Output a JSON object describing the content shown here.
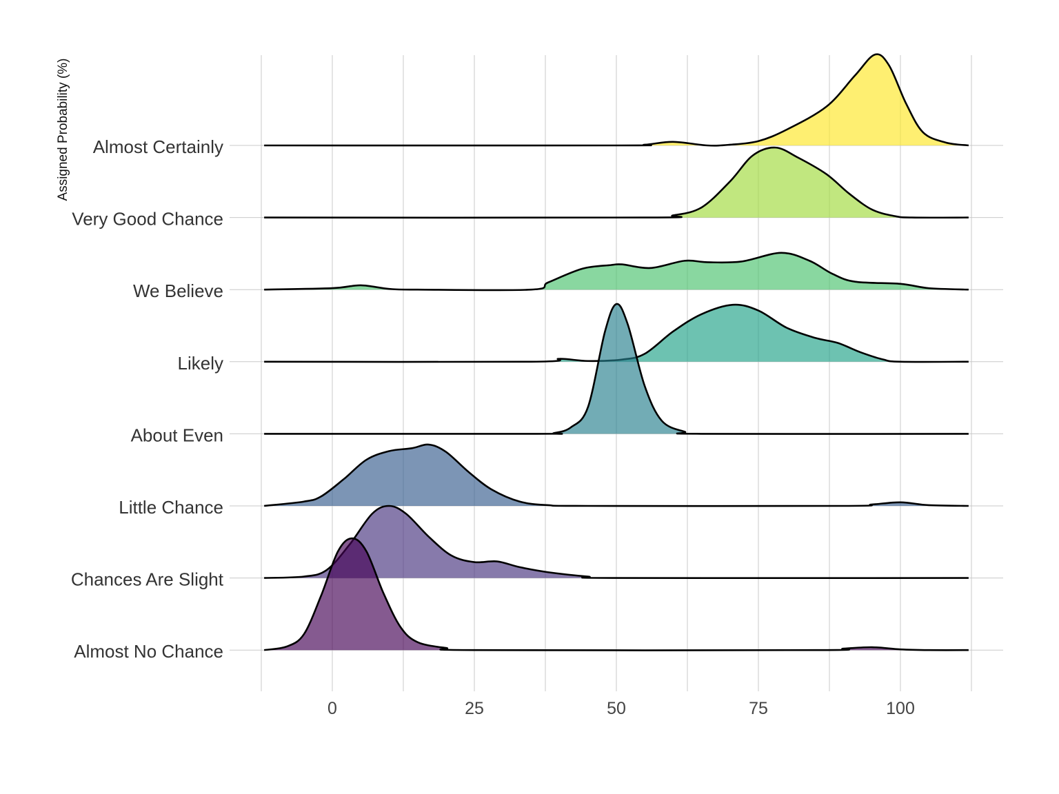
{
  "chart_data": {
    "type": "ridgeline",
    "title": "",
    "xlabel": "",
    "ylabel": "Assigned Probability (%)",
    "xlim": [
      -12.5,
      112.5
    ],
    "x_ticks": [
      0,
      25,
      50,
      75,
      100
    ],
    "x_tick_labels": [
      "0",
      "25",
      "50",
      "75",
      "100"
    ],
    "grid": true,
    "palette": "viridis",
    "fill_opacity": 0.65,
    "note_height_units": "ridge height relative to row spacing",
    "series": [
      {
        "name": "Almost Certainly",
        "color": "#FDE725",
        "points": [
          [
            -12,
            0
          ],
          [
            50,
            0
          ],
          [
            55,
            0.01
          ],
          [
            60,
            0.05
          ],
          [
            66,
            0
          ],
          [
            70,
            0.01
          ],
          [
            75,
            0.06
          ],
          [
            80,
            0.22
          ],
          [
            87,
            0.54
          ],
          [
            92,
            0.97
          ],
          [
            95.5,
            1.26
          ],
          [
            98,
            1.11
          ],
          [
            101,
            0.58
          ],
          [
            104,
            0.18
          ],
          [
            108,
            0.04
          ],
          [
            112,
            0
          ]
        ]
      },
      {
        "name": "Very Good Chance",
        "color": "#9FDA3A",
        "points": [
          [
            -12,
            0
          ],
          [
            55,
            0
          ],
          [
            60,
            0.03
          ],
          [
            65,
            0.14
          ],
          [
            70,
            0.5
          ],
          [
            74,
            0.86
          ],
          [
            78,
            0.97
          ],
          [
            82,
            0.83
          ],
          [
            87,
            0.6
          ],
          [
            91,
            0.33
          ],
          [
            95,
            0.11
          ],
          [
            99,
            0.02
          ],
          [
            102,
            0
          ],
          [
            112,
            0
          ]
        ]
      },
      {
        "name": "We Believe",
        "color": "#4AC16D",
        "points": [
          [
            -12,
            0
          ],
          [
            0,
            0.02
          ],
          [
            5,
            0.06
          ],
          [
            10,
            0.01
          ],
          [
            15,
            0
          ],
          [
            35,
            0
          ],
          [
            38,
            0.1
          ],
          [
            44,
            0.29
          ],
          [
            49,
            0.34
          ],
          [
            51,
            0.35
          ],
          [
            56,
            0.3
          ],
          [
            62,
            0.4
          ],
          [
            66,
            0.38
          ],
          [
            72,
            0.39
          ],
          [
            79,
            0.51
          ],
          [
            84,
            0.4
          ],
          [
            88,
            0.22
          ],
          [
            92,
            0.11
          ],
          [
            100,
            0.08
          ],
          [
            105,
            0.02
          ],
          [
            112,
            0
          ]
        ]
      },
      {
        "name": "Likely",
        "color": "#1FA187",
        "points": [
          [
            -12,
            0
          ],
          [
            35,
            0
          ],
          [
            40,
            0.04
          ],
          [
            45,
            0.01
          ],
          [
            51,
            0.03
          ],
          [
            55,
            0.11
          ],
          [
            60,
            0.42
          ],
          [
            65,
            0.66
          ],
          [
            70.5,
            0.79
          ],
          [
            75,
            0.71
          ],
          [
            80,
            0.47
          ],
          [
            85,
            0.33
          ],
          [
            89,
            0.26
          ],
          [
            93,
            0.13
          ],
          [
            97,
            0.03
          ],
          [
            100,
            0
          ],
          [
            112,
            0
          ]
        ]
      },
      {
        "name": "About Even",
        "color": "#277F8E",
        "points": [
          [
            -12,
            0
          ],
          [
            36,
            0
          ],
          [
            39,
            0.01
          ],
          [
            42,
            0.09
          ],
          [
            45,
            0.37
          ],
          [
            48,
            1.42
          ],
          [
            50,
            1.8
          ],
          [
            52,
            1.52
          ],
          [
            55,
            0.66
          ],
          [
            58,
            0.18
          ],
          [
            62,
            0.03
          ],
          [
            65,
            0
          ],
          [
            112,
            0
          ]
        ]
      },
      {
        "name": "Little Chance",
        "color": "#365C8D",
        "points": [
          [
            -12,
            0
          ],
          [
            -5,
            0.06
          ],
          [
            -2,
            0.13
          ],
          [
            2,
            0.37
          ],
          [
            6,
            0.64
          ],
          [
            10,
            0.76
          ],
          [
            14,
            0.8
          ],
          [
            17,
            0.85
          ],
          [
            20,
            0.75
          ],
          [
            24,
            0.47
          ],
          [
            28,
            0.23
          ],
          [
            33,
            0.06
          ],
          [
            38,
            0.01
          ],
          [
            45,
            0
          ],
          [
            90,
            0
          ],
          [
            95,
            0.02
          ],
          [
            100,
            0.05
          ],
          [
            105,
            0.01
          ],
          [
            112,
            0
          ]
        ]
      },
      {
        "name": "Chances Are Slight",
        "color": "#46337E",
        "points": [
          [
            -12,
            0
          ],
          [
            -5,
            0.02
          ],
          [
            -1,
            0.11
          ],
          [
            3,
            0.46
          ],
          [
            7,
            0.89
          ],
          [
            10,
            1.0
          ],
          [
            13,
            0.89
          ],
          [
            17,
            0.57
          ],
          [
            21,
            0.31
          ],
          [
            25,
            0.22
          ],
          [
            29,
            0.23
          ],
          [
            33,
            0.15
          ],
          [
            38,
            0.08
          ],
          [
            45,
            0.02
          ],
          [
            50,
            0
          ],
          [
            112,
            0
          ]
        ]
      },
      {
        "name": "Almost No Chance",
        "color": "#440154",
        "points": [
          [
            -12,
            0
          ],
          [
            -8,
            0.05
          ],
          [
            -5,
            0.22
          ],
          [
            -2,
            0.75
          ],
          [
            1,
            1.37
          ],
          [
            3.5,
            1.55
          ],
          [
            6,
            1.37
          ],
          [
            9,
            0.79
          ],
          [
            12,
            0.32
          ],
          [
            15,
            0.11
          ],
          [
            20,
            0.03
          ],
          [
            25,
            0
          ],
          [
            85,
            0
          ],
          [
            90,
            0.02
          ],
          [
            95,
            0.04
          ],
          [
            100,
            0.01
          ],
          [
            105,
            0
          ],
          [
            112,
            0
          ]
        ]
      }
    ]
  }
}
